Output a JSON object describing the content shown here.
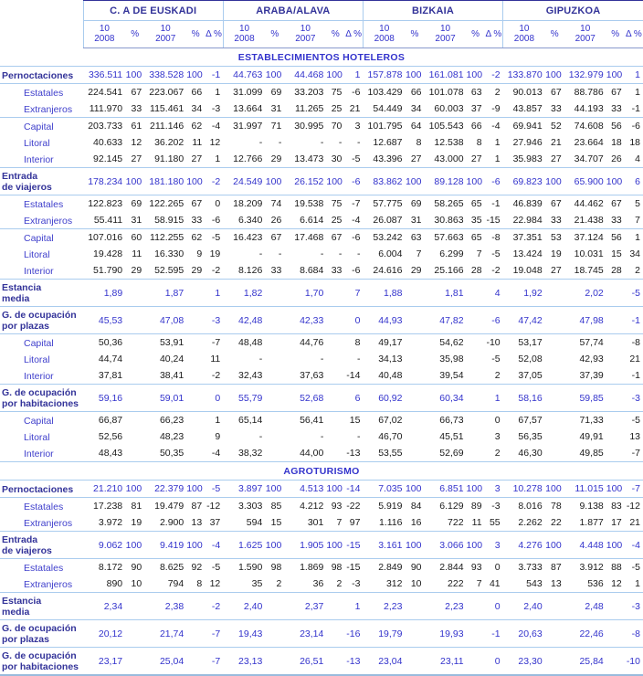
{
  "colors": {
    "accent_navy": "#333399",
    "accent_blue": "#3333CC",
    "line_light": "#AACCEE",
    "line_header": "#8899CC",
    "line_bottom": "#99BBDD",
    "sub_text": "#1a1a1a"
  },
  "header": {
    "regions": [
      "C. A DE EUSKADI",
      "ARABA/ALAVA",
      "BIZKAIA",
      "GIPUZKOA"
    ],
    "columns": [
      "10\n2008",
      "%",
      "10\n2007",
      "%",
      "Δ %"
    ]
  },
  "sections": [
    {
      "title": "ESTABLECIMIENTOS HOTELEROS",
      "sep_above": false,
      "rows": [
        {
          "label": "Pernoctaciones",
          "type": "main",
          "sep": false,
          "values": [
            "336.511",
            "100",
            "338.528",
            "100",
            "-1",
            "44.763",
            "100",
            "44.468",
            "100",
            "1",
            "157.878",
            "100",
            "161.081",
            "100",
            "-2",
            "133.870",
            "100",
            "132.979",
            "100",
            "1"
          ]
        },
        {
          "label": "Estatales",
          "type": "sub",
          "sep": true,
          "values": [
            "224.541",
            "67",
            "223.067",
            "66",
            "1",
            "31.099",
            "69",
            "33.203",
            "75",
            "-6",
            "103.429",
            "66",
            "101.078",
            "63",
            "2",
            "90.013",
            "67",
            "88.786",
            "67",
            "1"
          ]
        },
        {
          "label": "Extranjeros",
          "type": "sub",
          "sep": false,
          "values": [
            "111.970",
            "33",
            "115.461",
            "34",
            "-3",
            "13.664",
            "31",
            "11.265",
            "25",
            "21",
            "54.449",
            "34",
            "60.003",
            "37",
            "-9",
            "43.857",
            "33",
            "44.193",
            "33",
            "-1"
          ]
        },
        {
          "label": "Capital",
          "type": "sub",
          "sep": true,
          "values": [
            "203.733",
            "61",
            "211.146",
            "62",
            "-4",
            "31.997",
            "71",
            "30.995",
            "70",
            "3",
            "101.795",
            "64",
            "105.543",
            "66",
            "-4",
            "69.941",
            "52",
            "74.608",
            "56",
            "-6"
          ]
        },
        {
          "label": "Litoral",
          "type": "sub",
          "sep": false,
          "values": [
            "40.633",
            "12",
            "36.202",
            "11",
            "12",
            "-",
            "-",
            "-",
            "-",
            "-",
            "12.687",
            "8",
            "12.538",
            "8",
            "1",
            "27.946",
            "21",
            "23.664",
            "18",
            "18"
          ]
        },
        {
          "label": "Interior",
          "type": "sub",
          "sep": false,
          "values": [
            "92.145",
            "27",
            "91.180",
            "27",
            "1",
            "12.766",
            "29",
            "13.473",
            "30",
            "-5",
            "43.396",
            "27",
            "43.000",
            "27",
            "1",
            "35.983",
            "27",
            "34.707",
            "26",
            "4"
          ]
        },
        {
          "label": "Entrada\nde viajeros",
          "type": "main",
          "sep": true,
          "values": [
            "178.234",
            "100",
            "181.180",
            "100",
            "-2",
            "24.549",
            "100",
            "26.152",
            "100",
            "-6",
            "83.862",
            "100",
            "89.128",
            "100",
            "-6",
            "69.823",
            "100",
            "65.900",
            "100",
            "6"
          ]
        },
        {
          "label": "Estatales",
          "type": "sub",
          "sep": true,
          "values": [
            "122.823",
            "69",
            "122.265",
            "67",
            "0",
            "18.209",
            "74",
            "19.538",
            "75",
            "-7",
            "57.775",
            "69",
            "58.265",
            "65",
            "-1",
            "46.839",
            "67",
            "44.462",
            "67",
            "5"
          ]
        },
        {
          "label": "Extranjeros",
          "type": "sub",
          "sep": false,
          "values": [
            "55.411",
            "31",
            "58.915",
            "33",
            "-6",
            "6.340",
            "26",
            "6.614",
            "25",
            "-4",
            "26.087",
            "31",
            "30.863",
            "35",
            "-15",
            "22.984",
            "33",
            "21.438",
            "33",
            "7"
          ]
        },
        {
          "label": "Capital",
          "type": "sub",
          "sep": true,
          "values": [
            "107.016",
            "60",
            "112.255",
            "62",
            "-5",
            "16.423",
            "67",
            "17.468",
            "67",
            "-6",
            "53.242",
            "63",
            "57.663",
            "65",
            "-8",
            "37.351",
            "53",
            "37.124",
            "56",
            "1"
          ]
        },
        {
          "label": "Litoral",
          "type": "sub",
          "sep": false,
          "values": [
            "19.428",
            "11",
            "16.330",
            "9",
            "19",
            "-",
            "-",
            "-",
            "-",
            "-",
            "6.004",
            "7",
            "6.299",
            "7",
            "-5",
            "13.424",
            "19",
            "10.031",
            "15",
            "34"
          ]
        },
        {
          "label": "Interior",
          "type": "sub",
          "sep": false,
          "values": [
            "51.790",
            "29",
            "52.595",
            "29",
            "-2",
            "8.126",
            "33",
            "8.684",
            "33",
            "-6",
            "24.616",
            "29",
            "25.166",
            "28",
            "-2",
            "19.048",
            "27",
            "18.745",
            "28",
            "2"
          ]
        },
        {
          "label": "Estancia\nmedia",
          "type": "main",
          "sep": true,
          "values": [
            "1,89",
            "",
            "1,87",
            "",
            "1",
            "1,82",
            "",
            "1,70",
            "",
            "7",
            "1,88",
            "",
            "1,81",
            "",
            "4",
            "1,92",
            "",
            "2,02",
            "",
            "-5"
          ]
        },
        {
          "label": "G. de ocupación\npor plazas",
          "type": "main",
          "sep": true,
          "values": [
            "45,53",
            "",
            "47,08",
            "",
            "-3",
            "42,48",
            "",
            "42,33",
            "",
            "0",
            "44,93",
            "",
            "47,82",
            "",
            "-6",
            "47,42",
            "",
            "47,98",
            "",
            "-1"
          ]
        },
        {
          "label": "Capital",
          "type": "sub",
          "sep": true,
          "values": [
            "50,36",
            "",
            "53,91",
            "",
            "-7",
            "48,48",
            "",
            "44,76",
            "",
            "8",
            "49,17",
            "",
            "54,62",
            "",
            "-10",
            "53,17",
            "",
            "57,74",
            "",
            "-8"
          ]
        },
        {
          "label": "Litoral",
          "type": "sub",
          "sep": false,
          "values": [
            "44,74",
            "",
            "40,24",
            "",
            "11",
            "-",
            "",
            "-",
            "",
            "-",
            "34,13",
            "",
            "35,98",
            "",
            "-5",
            "52,08",
            "",
            "42,93",
            "",
            "21"
          ]
        },
        {
          "label": "Interior",
          "type": "sub",
          "sep": false,
          "values": [
            "37,81",
            "",
            "38,41",
            "",
            "-2",
            "32,43",
            "",
            "37,63",
            "",
            "-14",
            "40,48",
            "",
            "39,54",
            "",
            "2",
            "37,05",
            "",
            "37,39",
            "",
            "-1"
          ]
        },
        {
          "label": "G. de ocupación\npor habitaciones",
          "type": "main",
          "sep": true,
          "values": [
            "59,16",
            "",
            "59,01",
            "",
            "0",
            "55,79",
            "",
            "52,68",
            "",
            "6",
            "60,92",
            "",
            "60,34",
            "",
            "1",
            "58,16",
            "",
            "59,85",
            "",
            "-3"
          ]
        },
        {
          "label": "Capital",
          "type": "sub",
          "sep": true,
          "values": [
            "66,87",
            "",
            "66,23",
            "",
            "1",
            "65,14",
            "",
            "56,41",
            "",
            "15",
            "67,02",
            "",
            "66,73",
            "",
            "0",
            "67,57",
            "",
            "71,33",
            "",
            "-5"
          ]
        },
        {
          "label": "Litoral",
          "type": "sub",
          "sep": false,
          "values": [
            "52,56",
            "",
            "48,23",
            "",
            "9",
            "-",
            "",
            "-",
            "",
            "-",
            "46,70",
            "",
            "45,51",
            "",
            "3",
            "56,35",
            "",
            "49,91",
            "",
            "13"
          ]
        },
        {
          "label": "Interior",
          "type": "sub",
          "sep": false,
          "values": [
            "48,43",
            "",
            "50,35",
            "",
            "-4",
            "38,32",
            "",
            "44,00",
            "",
            "-13",
            "53,55",
            "",
            "52,69",
            "",
            "2",
            "46,30",
            "",
            "49,85",
            "",
            "-7"
          ]
        }
      ]
    },
    {
      "title": "AGROTURISMO",
      "sep_above": true,
      "rows": [
        {
          "label": "Pernoctaciones",
          "type": "main",
          "sep": false,
          "values": [
            "21.210",
            "100",
            "22.379",
            "100",
            "-5",
            "3.897",
            "100",
            "4.513",
            "100",
            "-14",
            "7.035",
            "100",
            "6.851",
            "100",
            "3",
            "10.278",
            "100",
            "11.015",
            "100",
            "-7"
          ]
        },
        {
          "label": "Estatales",
          "type": "sub",
          "sep": true,
          "values": [
            "17.238",
            "81",
            "19.479",
            "87",
            "-12",
            "3.303",
            "85",
            "4.212",
            "93",
            "-22",
            "5.919",
            "84",
            "6.129",
            "89",
            "-3",
            "8.016",
            "78",
            "9.138",
            "83",
            "-12"
          ]
        },
        {
          "label": "Extranjeros",
          "type": "sub",
          "sep": false,
          "values": [
            "3.972",
            "19",
            "2.900",
            "13",
            "37",
            "594",
            "15",
            "301",
            "7",
            "97",
            "1.116",
            "16",
            "722",
            "11",
            "55",
            "2.262",
            "22",
            "1.877",
            "17",
            "21"
          ]
        },
        {
          "label": "Entrada\nde viajeros",
          "type": "main",
          "sep": true,
          "values": [
            "9.062",
            "100",
            "9.419",
            "100",
            "-4",
            "1.625",
            "100",
            "1.905",
            "100",
            "-15",
            "3.161",
            "100",
            "3.066",
            "100",
            "3",
            "4.276",
            "100",
            "4.448",
            "100",
            "-4"
          ]
        },
        {
          "label": "Estatales",
          "type": "sub",
          "sep": true,
          "values": [
            "8.172",
            "90",
            "8.625",
            "92",
            "-5",
            "1.590",
            "98",
            "1.869",
            "98",
            "-15",
            "2.849",
            "90",
            "2.844",
            "93",
            "0",
            "3.733",
            "87",
            "3.912",
            "88",
            "-5"
          ]
        },
        {
          "label": "Extranjeros",
          "type": "sub",
          "sep": false,
          "values": [
            "890",
            "10",
            "794",
            "8",
            "12",
            "35",
            "2",
            "36",
            "2",
            "-3",
            "312",
            "10",
            "222",
            "7",
            "41",
            "543",
            "13",
            "536",
            "12",
            "1"
          ]
        },
        {
          "label": "Estancia\nmedia",
          "type": "main",
          "sep": true,
          "values": [
            "2,34",
            "",
            "2,38",
            "",
            "-2",
            "2,40",
            "",
            "2,37",
            "",
            "1",
            "2,23",
            "",
            "2,23",
            "",
            "0",
            "2,40",
            "",
            "2,48",
            "",
            "-3"
          ]
        },
        {
          "label": "G. de ocupación\npor plazas",
          "type": "main",
          "sep": true,
          "values": [
            "20,12",
            "",
            "21,74",
            "",
            "-7",
            "19,43",
            "",
            "23,14",
            "",
            "-16",
            "19,79",
            "",
            "19,93",
            "",
            "-1",
            "20,63",
            "",
            "22,46",
            "",
            "-8"
          ]
        },
        {
          "label": "G. de ocupación\npor habitaciones",
          "type": "main",
          "sep": true,
          "values": [
            "23,17",
            "",
            "25,04",
            "",
            "-7",
            "23,13",
            "",
            "26,51",
            "",
            "-13",
            "23,04",
            "",
            "23,11",
            "",
            "0",
            "23,30",
            "",
            "25,84",
            "",
            "-10"
          ]
        }
      ]
    }
  ]
}
